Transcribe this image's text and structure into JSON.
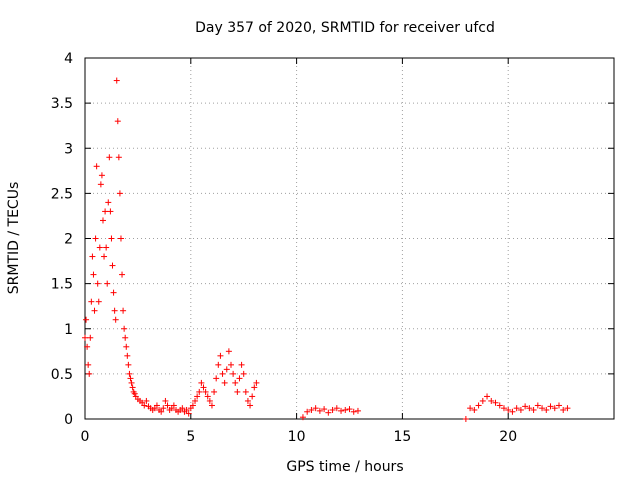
{
  "chart_data": {
    "type": "scatter",
    "title": "Day 357 of 2020, SRMTID for receiver ufcd",
    "xlabel": "GPS time / hours",
    "ylabel": "SRMTID / TECUs",
    "xlim": [
      0,
      25
    ],
    "ylim": [
      0,
      4
    ],
    "xticks": [
      0,
      5,
      10,
      15,
      20
    ],
    "xtick_labels": [
      "0",
      "5",
      "10",
      "15",
      "20"
    ],
    "yticks": [
      0,
      0.5,
      1,
      1.5,
      2,
      2.5,
      3,
      3.5,
      4
    ],
    "ytick_labels": [
      "0",
      "0.5",
      "1",
      "1.5",
      "2",
      "2.5",
      "3",
      "3.5",
      "4"
    ],
    "grid": true,
    "marker": "+",
    "series": [
      {
        "name": "SRMTID",
        "color": "#ff0000",
        "x": [
          0.0,
          0.05,
          0.1,
          0.15,
          0.2,
          0.25,
          0.3,
          0.35,
          0.4,
          0.45,
          0.5,
          0.55,
          0.6,
          0.65,
          0.7,
          0.75,
          0.8,
          0.85,
          0.9,
          0.95,
          1.0,
          1.05,
          1.1,
          1.15,
          1.2,
          1.25,
          1.3,
          1.35,
          1.4,
          1.45,
          1.5,
          1.55,
          1.6,
          1.65,
          1.7,
          1.75,
          1.8,
          1.85,
          1.9,
          1.95,
          2.0,
          2.05,
          2.1,
          2.15,
          2.2,
          2.25,
          2.3,
          2.35,
          2.4,
          2.5,
          2.6,
          2.7,
          2.8,
          2.9,
          3.0,
          3.1,
          3.2,
          3.3,
          3.4,
          3.5,
          3.6,
          3.7,
          3.8,
          3.9,
          4.0,
          4.1,
          4.2,
          4.3,
          4.4,
          4.5,
          4.6,
          4.7,
          4.8,
          4.9,
          5.0,
          5.1,
          5.2,
          5.3,
          5.4,
          5.5,
          5.6,
          5.7,
          5.8,
          5.9,
          6.0,
          6.1,
          6.2,
          6.3,
          6.4,
          6.5,
          6.6,
          6.7,
          6.8,
          6.9,
          7.0,
          7.1,
          7.2,
          7.3,
          7.4,
          7.5,
          7.6,
          7.7,
          7.8,
          7.9,
          8.0,
          8.1,
          10.3,
          10.5,
          10.7,
          10.9,
          11.1,
          11.3,
          11.5,
          11.7,
          11.9,
          12.1,
          12.3,
          12.5,
          12.7,
          12.9,
          18.0,
          18.2,
          18.4,
          18.6,
          18.8,
          19.0,
          19.2,
          19.4,
          19.6,
          19.8,
          20.0,
          20.2,
          20.4,
          20.6,
          20.8,
          21.0,
          21.2,
          21.4,
          21.6,
          21.8,
          22.0,
          22.2,
          22.4,
          22.6,
          22.8
        ],
        "y": [
          0.9,
          1.1,
          0.8,
          0.6,
          0.5,
          0.9,
          1.3,
          1.8,
          1.6,
          1.2,
          2.0,
          2.8,
          1.5,
          1.3,
          1.9,
          2.6,
          2.7,
          2.2,
          1.8,
          2.3,
          1.9,
          1.5,
          2.4,
          2.9,
          2.3,
          2.0,
          1.7,
          1.4,
          1.2,
          1.1,
          3.75,
          3.3,
          2.9,
          2.5,
          2.0,
          1.6,
          1.2,
          1.0,
          0.9,
          0.8,
          0.7,
          0.6,
          0.5,
          0.45,
          0.4,
          0.35,
          0.3,
          0.28,
          0.25,
          0.22,
          0.2,
          0.18,
          0.15,
          0.2,
          0.14,
          0.12,
          0.1,
          0.12,
          0.15,
          0.1,
          0.08,
          0.12,
          0.2,
          0.15,
          0.1,
          0.12,
          0.15,
          0.1,
          0.08,
          0.1,
          0.12,
          0.08,
          0.1,
          0.06,
          0.12,
          0.15,
          0.2,
          0.25,
          0.3,
          0.4,
          0.35,
          0.3,
          0.25,
          0.2,
          0.15,
          0.3,
          0.45,
          0.6,
          0.7,
          0.5,
          0.4,
          0.55,
          0.75,
          0.6,
          0.5,
          0.4,
          0.3,
          0.45,
          0.6,
          0.5,
          0.3,
          0.2,
          0.15,
          0.25,
          0.35,
          0.4,
          0.02,
          0.08,
          0.1,
          0.12,
          0.09,
          0.11,
          0.07,
          0.1,
          0.12,
          0.09,
          0.1,
          0.11,
          0.08,
          0.09,
          0.0,
          0.12,
          0.1,
          0.15,
          0.2,
          0.25,
          0.2,
          0.18,
          0.15,
          0.12,
          0.1,
          0.08,
          0.12,
          0.1,
          0.14,
          0.12,
          0.1,
          0.15,
          0.12,
          0.1,
          0.14,
          0.12,
          0.15,
          0.1,
          0.12
        ]
      }
    ]
  }
}
